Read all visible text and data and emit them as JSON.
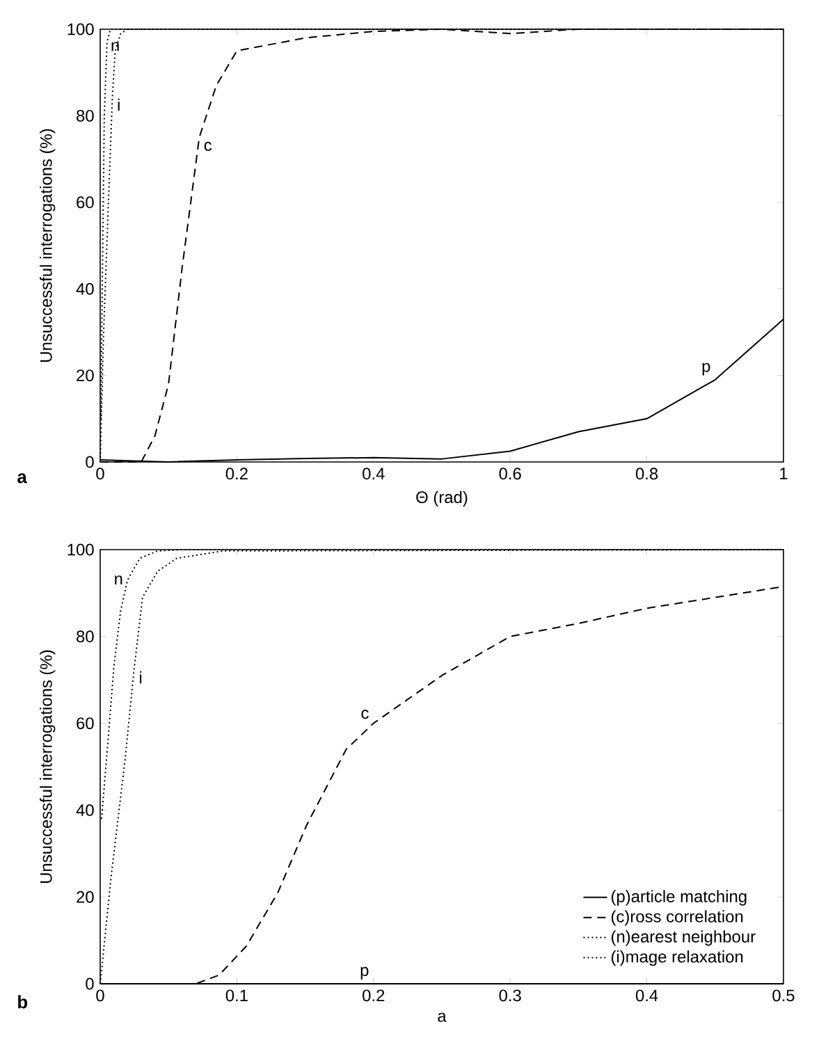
{
  "chart_data": [
    {
      "type": "line",
      "xlabel": "Θ (rad)",
      "ylabel": "Unsuccessful interrogations (%)",
      "xlim": [
        0,
        1
      ],
      "ylim": [
        0,
        100
      ],
      "xticks": [
        0,
        0.2,
        0.4,
        0.6,
        0.8,
        1
      ],
      "yticks": [
        0,
        20,
        40,
        60,
        80,
        100
      ],
      "grid": false,
      "legend": false,
      "series": [
        {
          "color": "#000000",
          "line_style": "solid",
          "x": [
            0,
            0.1,
            0.2,
            0.3,
            0.4,
            0.5,
            0.6,
            0.7,
            0.8,
            0.9,
            1
          ],
          "values": [
            0.5,
            0,
            0.5,
            0.8,
            1,
            0.7,
            2.5,
            7,
            10,
            19,
            33
          ]
        },
        {
          "color": "#000000",
          "line_style": "dashed",
          "x": [
            0,
            0.06,
            0.08,
            0.1,
            0.12,
            0.145,
            0.17,
            0.2,
            0.3,
            0.4,
            0.5,
            0.6,
            0.7,
            1
          ],
          "values": [
            0,
            0,
            6,
            18,
            45,
            75,
            87,
            95,
            98,
            99.5,
            100,
            99,
            100,
            100
          ]
        },
        {
          "color": "#000000",
          "line_style": "dotted",
          "x": [
            0.001,
            0.003,
            0.006,
            0.01,
            0.015,
            1
          ],
          "values": [
            10,
            40,
            80,
            97,
            100,
            100
          ]
        },
        {
          "color": "#000000",
          "line_style": "dotted",
          "x": [
            0,
            0.005,
            0.013,
            0.018,
            0.022,
            0.03,
            0.04,
            1
          ],
          "values": [
            0,
            30,
            64,
            85,
            95,
            99,
            100,
            100
          ]
        }
      ],
      "annotations": [
        {
          "text": "n",
          "x": 0.022,
          "y": 96
        },
        {
          "text": "i",
          "x": 0.018,
          "y": 85
        },
        {
          "text": "c",
          "x": 0.145,
          "y": 75
        },
        {
          "text": "p",
          "x": 0.9,
          "y": 19
        },
        "**a**"
      ]
    },
    {
      "type": "line",
      "xlabel": "a",
      "ylabel": "Unsuccessful interrogations (%)",
      "xlim": [
        0,
        0.5
      ],
      "ylim": [
        0,
        100
      ],
      "xticks": [
        0,
        0.1,
        0.2,
        0.3,
        0.4,
        0.5
      ],
      "yticks": [
        0,
        20,
        40,
        60,
        80,
        100
      ],
      "grid": false,
      "legend": "bottom right",
      "series": [
        {
          "name": "(p)article matching",
          "color": "#000000",
          "line_style": "solid",
          "x": [
            0,
            0.1,
            0.2,
            0.3,
            0.4,
            0.5
          ],
          "values": [
            0,
            0,
            0,
            0,
            0,
            0
          ]
        },
        {
          "name": "(c)ross correlation",
          "color": "#000000",
          "line_style": "dashed",
          "x": [
            0,
            0.05,
            0.07,
            0.087,
            0.107,
            0.13,
            0.151,
            0.18,
            0.2,
            0.25,
            0.3,
            0.35,
            0.4,
            0.5
          ],
          "values": [
            0,
            0,
            0,
            2,
            8.7,
            21,
            36.5,
            54,
            60,
            71,
            80,
            83,
            86.5,
            91.5
          ]
        },
        {
          "name": "(n)earest neighbour",
          "color": "#000000",
          "line_style": "dotted",
          "x": [
            0.001,
            0.006,
            0.01,
            0.015,
            0.02,
            0.029,
            0.042,
            0.06,
            0.5
          ],
          "values": [
            38,
            57,
            73,
            86,
            93,
            98,
            99.7,
            100,
            100
          ]
        },
        {
          "name": "(i)mage relaxation",
          "color": "#000000",
          "line_style": "dotted",
          "x": [
            0,
            0.001,
            0.008,
            0.018,
            0.025,
            0.031,
            0.042,
            0.056,
            0.09,
            0.5
          ],
          "values": [
            0,
            3,
            24.7,
            51,
            73,
            89,
            95,
            98,
            99.7,
            100
          ]
        }
      ],
      "annotations": [
        {
          "text": "n",
          "x": 0.02,
          "y": 93
        },
        {
          "text": "i",
          "x": 0.025,
          "y": 73
        },
        {
          "text": "c",
          "x": 0.2,
          "y": 60
        },
        {
          "text": "p",
          "x": 0.2,
          "y": 0
        },
        "**b**"
      ]
    }
  ]
}
